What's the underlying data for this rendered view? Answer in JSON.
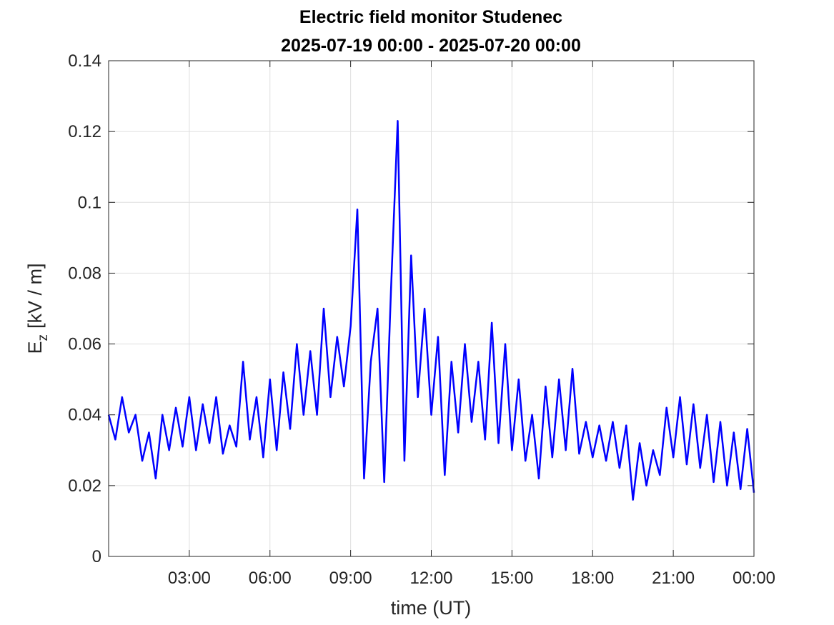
{
  "chart_data": {
    "type": "line",
    "title": "Electric field monitor Studenec",
    "subtitle": "2025-07-19 00:00 - 2025-07-20 00:00",
    "xlabel": "time (UT)",
    "ylabel": [
      "E",
      "z",
      "[kV / m]"
    ],
    "color": "#0000ff",
    "grid": true,
    "xlim": [
      0,
      24
    ],
    "xticks": [
      {
        "value": 3,
        "label": "03:00"
      },
      {
        "value": 6,
        "label": "06:00"
      },
      {
        "value": 9,
        "label": "09:00"
      },
      {
        "value": 12,
        "label": "12:00"
      },
      {
        "value": 15,
        "label": "15:00"
      },
      {
        "value": 18,
        "label": "18:00"
      },
      {
        "value": 21,
        "label": "21:00"
      },
      {
        "value": 24,
        "label": "00:00"
      }
    ],
    "ylim": [
      0,
      0.14
    ],
    "yticks": [
      0,
      0.02,
      0.04,
      0.06,
      0.08,
      0.1,
      0.12,
      0.14
    ],
    "x": [
      0,
      0.25,
      0.5,
      0.75,
      1,
      1.25,
      1.5,
      1.75,
      2,
      2.25,
      2.5,
      2.75,
      3,
      3.25,
      3.5,
      3.75,
      4,
      4.25,
      4.5,
      4.75,
      5,
      5.25,
      5.5,
      5.75,
      6,
      6.25,
      6.5,
      6.75,
      7,
      7.25,
      7.5,
      7.75,
      8,
      8.25,
      8.5,
      8.75,
      9,
      9.25,
      9.5,
      9.75,
      10,
      10.25,
      10.5,
      10.75,
      11,
      11.25,
      11.5,
      11.75,
      12,
      12.25,
      12.5,
      12.75,
      13,
      13.25,
      13.5,
      13.75,
      14,
      14.25,
      14.5,
      14.75,
      15,
      15.25,
      15.5,
      15.75,
      16,
      16.25,
      16.5,
      16.75,
      17,
      17.25,
      17.5,
      17.75,
      18,
      18.25,
      18.5,
      18.75,
      19,
      19.25,
      19.5,
      19.75,
      20,
      20.25,
      20.5,
      20.75,
      21,
      21.25,
      21.5,
      21.75,
      22,
      22.25,
      22.5,
      22.75,
      23,
      23.25,
      23.5,
      23.75,
      24
    ],
    "values": [
      0.04,
      0.033,
      0.045,
      0.035,
      0.04,
      0.027,
      0.035,
      0.022,
      0.04,
      0.03,
      0.042,
      0.031,
      0.045,
      0.03,
      0.043,
      0.032,
      0.045,
      0.029,
      0.037,
      0.031,
      0.055,
      0.033,
      0.045,
      0.028,
      0.05,
      0.03,
      0.052,
      0.036,
      0.06,
      0.04,
      0.058,
      0.04,
      0.07,
      0.045,
      0.062,
      0.048,
      0.065,
      0.098,
      0.022,
      0.055,
      0.07,
      0.021,
      0.075,
      0.123,
      0.027,
      0.085,
      0.045,
      0.07,
      0.04,
      0.062,
      0.023,
      0.055,
      0.035,
      0.06,
      0.038,
      0.055,
      0.033,
      0.066,
      0.032,
      0.06,
      0.03,
      0.05,
      0.027,
      0.04,
      0.022,
      0.048,
      0.028,
      0.05,
      0.03,
      0.053,
      0.029,
      0.038,
      0.028,
      0.037,
      0.027,
      0.038,
      0.025,
      0.037,
      0.016,
      0.032,
      0.02,
      0.03,
      0.023,
      0.042,
      0.028,
      0.045,
      0.026,
      0.043,
      0.025,
      0.04,
      0.021,
      0.038,
      0.02,
      0.035,
      0.019,
      0.036,
      0.018
    ]
  }
}
